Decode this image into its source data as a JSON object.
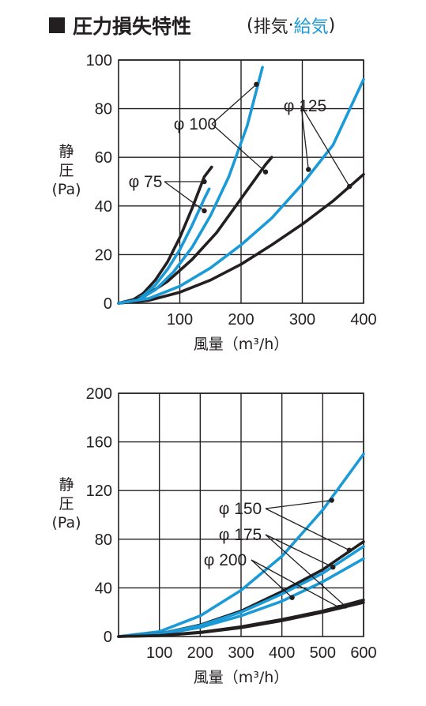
{
  "header": {
    "title": "圧力損失特性",
    "subtitle_open": "(",
    "subtitle_exhaust": "排気",
    "subtitle_sep": "·",
    "subtitle_supply": "給気",
    "subtitle_close": ")"
  },
  "colors": {
    "exhaust": "#231f20",
    "supply": "#1a9ad6",
    "grid": "#231f20"
  },
  "chart_data": [
    {
      "type": "line",
      "xlabel": "風量（m³/h）",
      "ylabel": [
        "静",
        "圧",
        "(Pa)"
      ],
      "xlim": [
        0,
        400
      ],
      "ylim": [
        0,
        100
      ],
      "xticks": [
        100,
        200,
        300,
        400
      ],
      "yticks": [
        0,
        20,
        40,
        60,
        80,
        100
      ],
      "x_origin_label": "0",
      "grid": true,
      "series": [
        {
          "name": "φ75",
          "mode": "排気",
          "x": [
            0,
            20,
            40,
            60,
            80,
            100,
            120,
            140,
            152
          ],
          "y": [
            0,
            0.8,
            4,
            9.5,
            17,
            27,
            39,
            52,
            56
          ]
        },
        {
          "name": "φ75",
          "mode": "給気",
          "x": [
            0,
            20,
            40,
            60,
            80,
            100,
            120,
            140,
            148
          ],
          "y": [
            0,
            0.6,
            3,
            7.5,
            14,
            22,
            32,
            43,
            47
          ]
        },
        {
          "name": "φ100",
          "mode": "排気",
          "x": [
            0,
            40,
            80,
            120,
            160,
            200,
            240,
            250
          ],
          "y": [
            0,
            2.5,
            9,
            18,
            29,
            43,
            57,
            60
          ]
        },
        {
          "name": "φ100",
          "mode": "給気",
          "x": [
            0,
            30,
            60,
            90,
            120,
            150,
            180,
            210,
            235
          ],
          "y": [
            0,
            1.2,
            5.5,
            13,
            23,
            36,
            52,
            73,
            97
          ]
        },
        {
          "name": "φ125",
          "mode": "排気",
          "x": [
            0,
            50,
            100,
            150,
            200,
            250,
            300,
            350,
            400
          ],
          "y": [
            0,
            1.2,
            4.5,
            9.5,
            16,
            24,
            32.5,
            42,
            53
          ]
        },
        {
          "name": "φ125",
          "mode": "給気",
          "x": [
            0,
            50,
            100,
            150,
            200,
            250,
            300,
            350,
            400
          ],
          "y": [
            0,
            2,
            7,
            14.5,
            24,
            35,
            49,
            65,
            92
          ]
        }
      ],
      "labels": [
        {
          "text": "φ 75",
          "points": [
            [
              140,
              50
            ],
            [
              140,
              38
            ]
          ]
        },
        {
          "text": "φ 100",
          "points": [
            [
              225,
              90
            ],
            [
              240,
              54
            ]
          ]
        },
        {
          "text": "φ 125",
          "points": [
            [
              310,
              55
            ],
            [
              377,
              48
            ]
          ]
        }
      ]
    },
    {
      "type": "line",
      "xlabel": "風量（m³/h）",
      "ylabel": [
        "静",
        "圧",
        "(Pa)"
      ],
      "xlim": [
        0,
        600
      ],
      "ylim": [
        0,
        200
      ],
      "xticks": [
        100,
        200,
        300,
        400,
        500,
        600
      ],
      "yticks": [
        0,
        40,
        80,
        120,
        160,
        200
      ],
      "x_origin_label": "",
      "grid": true,
      "series": [
        {
          "name": "φ150",
          "mode": "給気",
          "x": [
            0,
            100,
            200,
            300,
            400,
            500,
            600
          ],
          "y": [
            0,
            4,
            17,
            38,
            66,
            104,
            150
          ]
        },
        {
          "name": "φ150",
          "mode": "排気",
          "x": [
            0,
            100,
            200,
            300,
            400,
            500,
            600
          ],
          "y": [
            0,
            2.2,
            9.5,
            21,
            37,
            55,
            78
          ]
        },
        {
          "name": "φ175",
          "mode": "給気",
          "x": [
            0,
            100,
            200,
            300,
            400,
            500,
            600
          ],
          "y": [
            0,
            2.1,
            9,
            20,
            35,
            52,
            74
          ]
        },
        {
          "name": "φ200",
          "mode": "給気",
          "x": [
            0,
            100,
            200,
            300,
            400,
            500,
            600
          ],
          "y": [
            0,
            1.8,
            7.5,
            17,
            29,
            45,
            64
          ]
        },
        {
          "name": "φ175",
          "mode": "排気",
          "x": [
            0,
            100,
            200,
            300,
            400,
            500,
            600
          ],
          "y": [
            0,
            0.8,
            3.5,
            8,
            14,
            21,
            30
          ]
        },
        {
          "name": "φ200",
          "mode": "排気",
          "x": [
            0,
            100,
            200,
            300,
            400,
            500,
            600
          ],
          "y": [
            0,
            0.7,
            3.2,
            7.3,
            13,
            20,
            28
          ]
        }
      ],
      "labels": [
        {
          "text": "φ 150",
          "points": [
            [
              522,
              112
            ],
            [
              565,
              71
            ]
          ]
        },
        {
          "text": "φ 175",
          "points": [
            [
              525,
              57
            ],
            [
              555,
              25
            ]
          ]
        },
        {
          "text": "φ 200",
          "points": [
            [
              425,
              32
            ],
            [
              540,
              24
            ]
          ]
        }
      ]
    }
  ]
}
